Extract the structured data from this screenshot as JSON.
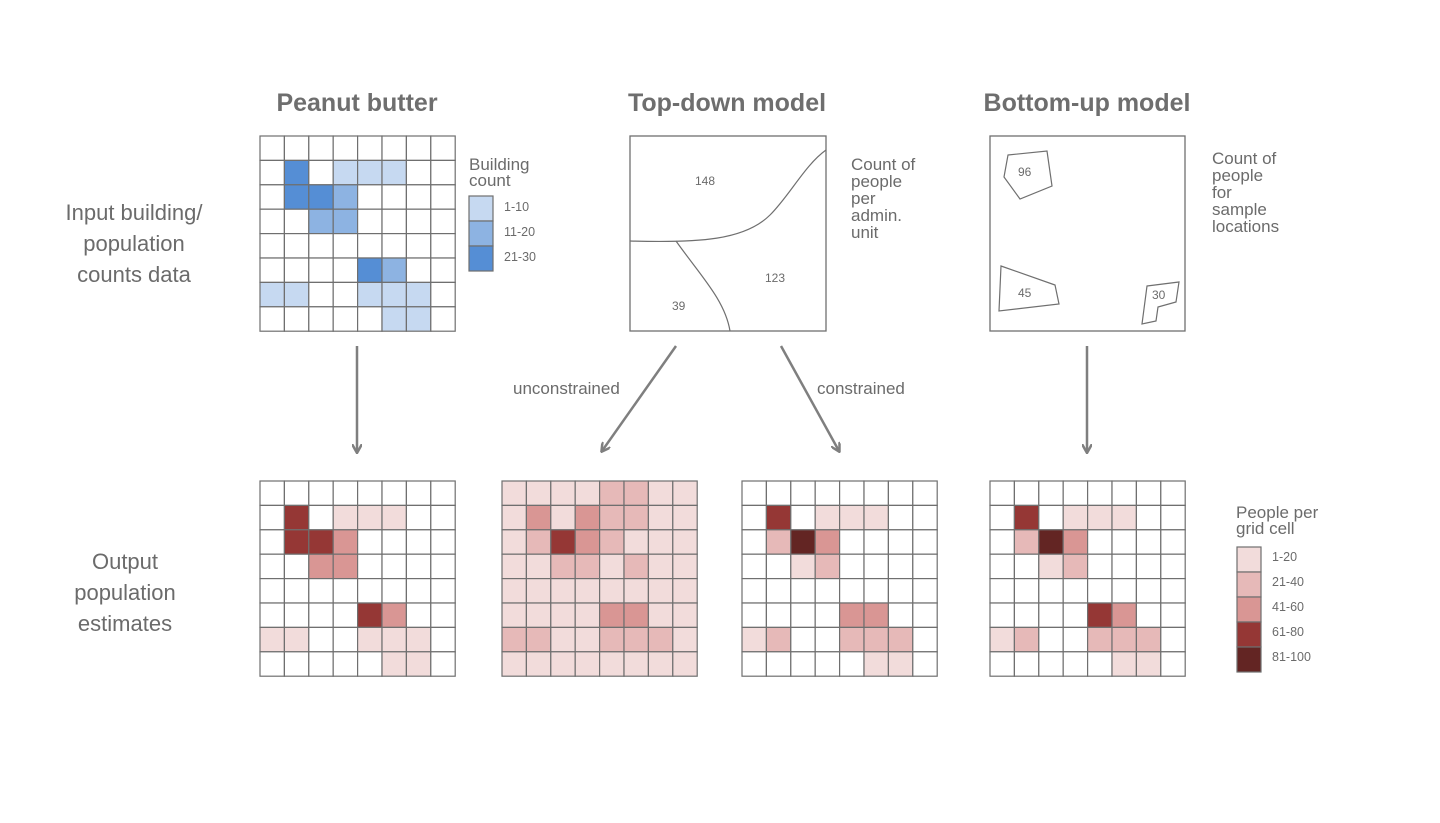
{
  "titles": {
    "peanut_butter": "Peanut butter",
    "top_down": "Top-down model",
    "bottom_up": "Bottom-up model"
  },
  "row_labels": {
    "input": "Input building/\npopulation\ncounts data",
    "output": "Output\npopulation\nestimates"
  },
  "side_labels": {
    "admin_counts": "Count of\npeople\nper\nadmin.\nunit",
    "sample_counts": "Count of\npeople\nfor\nsample\nlocations"
  },
  "edge_labels": {
    "unconstrained": "unconstrained",
    "constrained": "constrained"
  },
  "building_legend": {
    "title": "Building\ncount",
    "entries": [
      {
        "label": "1-10",
        "color": "#c6d9f1"
      },
      {
        "label": "11-20",
        "color": "#8db3e2"
      },
      {
        "label": "21-30",
        "color": "#558ed5"
      }
    ]
  },
  "people_legend": {
    "title": "People per\ngrid cell",
    "entries": [
      {
        "label": "1-20",
        "color": "#f2dcdb"
      },
      {
        "label": "21-40",
        "color": "#e6b9b8"
      },
      {
        "label": "41-60",
        "color": "#d99694"
      },
      {
        "label": "61-80",
        "color": "#953735"
      },
      {
        "label": "81-100",
        "color": "#632523"
      }
    ]
  },
  "admin_units": [
    {
      "name": "148",
      "count": "148"
    },
    {
      "name": "123",
      "count": "123"
    },
    {
      "name": "39",
      "count": "39"
    }
  ],
  "sample_locations": [
    "96",
    "45",
    "30"
  ],
  "grids": {
    "building_input": [
      [
        0,
        0,
        0,
        0,
        0,
        0,
        0,
        0
      ],
      [
        0,
        3,
        0,
        1,
        1,
        1,
        0,
        0
      ],
      [
        0,
        3,
        3,
        2,
        0,
        0,
        0,
        0
      ],
      [
        0,
        0,
        2,
        2,
        0,
        0,
        0,
        0
      ],
      [
        0,
        0,
        0,
        0,
        0,
        0,
        0,
        0
      ],
      [
        0,
        0,
        0,
        0,
        3,
        2,
        0,
        0
      ],
      [
        1,
        1,
        0,
        0,
        1,
        1,
        1,
        0
      ],
      [
        0,
        0,
        0,
        0,
        0,
        1,
        1,
        0
      ]
    ],
    "peanut_butter_output": [
      [
        0,
        0,
        0,
        0,
        0,
        0,
        0,
        0
      ],
      [
        0,
        4,
        0,
        1,
        1,
        1,
        0,
        0
      ],
      [
        0,
        4,
        4,
        3,
        0,
        0,
        0,
        0
      ],
      [
        0,
        0,
        3,
        3,
        0,
        0,
        0,
        0
      ],
      [
        0,
        0,
        0,
        0,
        0,
        0,
        0,
        0
      ],
      [
        0,
        0,
        0,
        0,
        4,
        3,
        0,
        0
      ],
      [
        1,
        1,
        0,
        0,
        1,
        1,
        1,
        0
      ],
      [
        0,
        0,
        0,
        0,
        0,
        1,
        1,
        0
      ]
    ],
    "unconstrained_output": [
      [
        1,
        1,
        1,
        1,
        2,
        2,
        1,
        1
      ],
      [
        1,
        3,
        1,
        3,
        2,
        2,
        1,
        1
      ],
      [
        1,
        2,
        4,
        3,
        2,
        1,
        1,
        1
      ],
      [
        1,
        1,
        2,
        2,
        1,
        2,
        1,
        1
      ],
      [
        1,
        1,
        1,
        1,
        1,
        1,
        1,
        1
      ],
      [
        1,
        1,
        1,
        1,
        3,
        3,
        1,
        1
      ],
      [
        2,
        2,
        1,
        1,
        2,
        2,
        2,
        1
      ],
      [
        1,
        1,
        1,
        1,
        1,
        1,
        1,
        1
      ]
    ],
    "constrained_output": [
      [
        0,
        0,
        0,
        0,
        0,
        0,
        0,
        0
      ],
      [
        0,
        4,
        0,
        1,
        1,
        1,
        0,
        0
      ],
      [
        0,
        2,
        5,
        3,
        0,
        0,
        0,
        0
      ],
      [
        0,
        0,
        1,
        2,
        0,
        0,
        0,
        0
      ],
      [
        0,
        0,
        0,
        0,
        0,
        0,
        0,
        0
      ],
      [
        0,
        0,
        0,
        0,
        3,
        3,
        0,
        0
      ],
      [
        1,
        2,
        0,
        0,
        2,
        2,
        2,
        0
      ],
      [
        0,
        0,
        0,
        0,
        0,
        1,
        1,
        0
      ]
    ],
    "bottom_up_output": [
      [
        0,
        0,
        0,
        0,
        0,
        0,
        0,
        0
      ],
      [
        0,
        4,
        0,
        1,
        1,
        1,
        0,
        0
      ],
      [
        0,
        2,
        5,
        3,
        0,
        0,
        0,
        0
      ],
      [
        0,
        0,
        1,
        2,
        0,
        0,
        0,
        0
      ],
      [
        0,
        0,
        0,
        0,
        0,
        0,
        0,
        0
      ],
      [
        0,
        0,
        0,
        0,
        4,
        3,
        0,
        0
      ],
      [
        1,
        2,
        0,
        0,
        2,
        2,
        2,
        0
      ],
      [
        0,
        0,
        0,
        0,
        0,
        1,
        1,
        0
      ]
    ]
  }
}
